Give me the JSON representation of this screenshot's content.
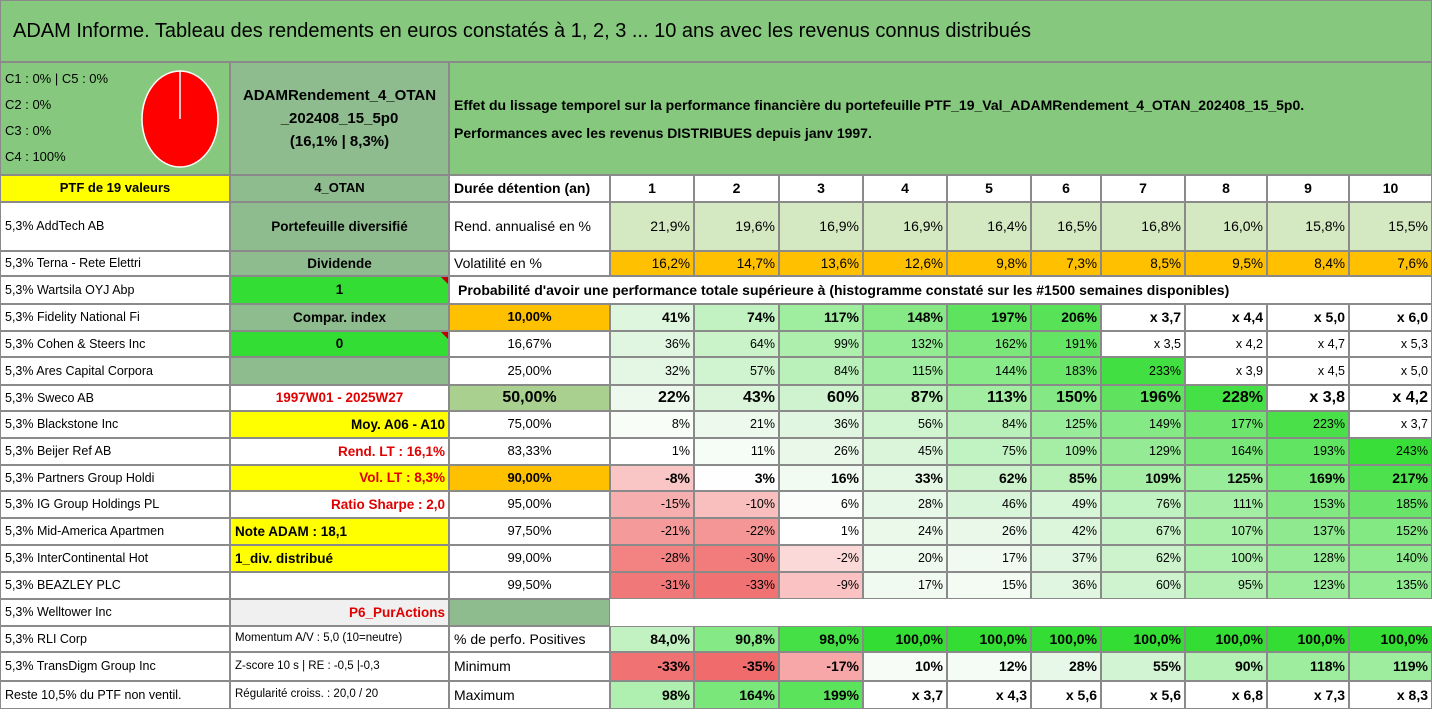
{
  "title": "ADAM Informe. Tableau des rendements en euros constatés à 1, 2, 3 ... 10 ans avec les revenus connus distribués",
  "colors": {
    "header_green": "#86c97e",
    "mid_green": "#8fbc8f",
    "yellow": "#ffff00",
    "orange": "#ffc000",
    "bright_green": "#33dd33",
    "pie_red": "#ff0000"
  },
  "allocation": {
    "lines": [
      "C1 : 0% | C5 : 0%",
      "C2 : 0%",
      "C3 : 0%",
      "C4 : 100%"
    ],
    "c4_share": 1.0
  },
  "portfolio": {
    "name_line1": "ADAMRendement_4_OTAN",
    "name_line2": "_202408_15_5p0",
    "name_line3": "(16,1% | 8,3%)",
    "description_line1": "Effet du lissage temporel sur la performance financière du portefeuille PTF_19_Val_ADAMRendement_4_OTAN_202408_15_5p0.",
    "description_line2": "Performances avec les revenus DISTRIBUES depuis janv 1997."
  },
  "labels": {
    "ptf_count": "PTF de 19 valeurs",
    "strategy": "4_OTAN",
    "duration": "Durée détention (an)",
    "years": [
      "1",
      "2",
      "3",
      "4",
      "5",
      "6",
      "7",
      "8",
      "9",
      "10"
    ],
    "probability_note": "Probabilité d'avoir une performance totale supérieure à (histogramme constaté sur les #1500 semaines disponibles)"
  },
  "holdings": [
    "5,3% AddTech AB",
    "5,3% Terna - Rete Elettri",
    "5,3% Wartsila OYJ Abp",
    "5,3% Fidelity National Fi",
    "5,3% Cohen & Steers Inc",
    "5,3% Ares Capital Corpora",
    "5,3% Sweco AB",
    "5,3% Blackstone Inc",
    "5,3% Beijer Ref AB",
    "5,3% Partners Group Holdi",
    "5,3% IG Group Holdings PL",
    "5,3% Mid-America Apartmen",
    "5,3% InterContinental Hot",
    "5,3% BEAZLEY PLC",
    "5,3% Welltower Inc",
    "5,3% RLI Corp",
    "5,3% TransDigm Group Inc",
    "Reste 10,5% du PTF non ventil."
  ],
  "info": [
    "Portefeuille diversifié",
    "Dividende",
    "1",
    "Compar. index",
    "0",
    "",
    "1997W01 - 2025W27",
    "Moy. A06 - A10",
    "Rend. LT : 16,1%",
    "Vol. LT : 8,3%",
    "Ratio Sharpe : 2,0",
    "Note ADAM : 18,1",
    "1_div. distribué",
    "",
    "P6_PurActions",
    "Momentum A/V : 5,0 (10=neutre)",
    "Z-score 10 s | RE : -0,5 |-0,3",
    "Régularité croiss. : 20,0 / 20"
  ],
  "returns": {
    "label": "Rend. annualisé en %",
    "values": [
      "21,9%",
      "19,6%",
      "16,9%",
      "16,9%",
      "16,4%",
      "16,5%",
      "16,8%",
      "16,0%",
      "15,8%",
      "15,5%"
    ]
  },
  "volatility": {
    "label": "Volatilité en %",
    "values": [
      "16,2%",
      "14,7%",
      "13,6%",
      "12,6%",
      "9,8%",
      "7,3%",
      "8,5%",
      "9,5%",
      "8,4%",
      "7,6%"
    ]
  },
  "probabilities": [
    {
      "p": "10,00%",
      "values": [
        "41%",
        "74%",
        "117%",
        "148%",
        "197%",
        "206%",
        "x 3,7",
        "x 4,4",
        "x 5,0",
        "x 6,0"
      ]
    },
    {
      "p": "16,67%",
      "values": [
        "36%",
        "64%",
        "99%",
        "132%",
        "162%",
        "191%",
        "x 3,5",
        "x 4,2",
        "x 4,7",
        "x 5,3"
      ]
    },
    {
      "p": "25,00%",
      "values": [
        "32%",
        "57%",
        "84%",
        "115%",
        "144%",
        "183%",
        "233%",
        "x 3,9",
        "x 4,5",
        "x 5,0"
      ]
    },
    {
      "p": "50,00%",
      "values": [
        "22%",
        "43%",
        "60%",
        "87%",
        "113%",
        "150%",
        "196%",
        "228%",
        "x 3,8",
        "x 4,2"
      ]
    },
    {
      "p": "75,00%",
      "values": [
        "8%",
        "21%",
        "36%",
        "56%",
        "84%",
        "125%",
        "149%",
        "177%",
        "223%",
        "x 3,7"
      ]
    },
    {
      "p": "83,33%",
      "values": [
        "1%",
        "11%",
        "26%",
        "45%",
        "75%",
        "109%",
        "129%",
        "164%",
        "193%",
        "243%"
      ]
    },
    {
      "p": "90,00%",
      "values": [
        "-8%",
        "3%",
        "16%",
        "33%",
        "62%",
        "85%",
        "109%",
        "125%",
        "169%",
        "217%"
      ]
    },
    {
      "p": "95,00%",
      "values": [
        "-15%",
        "-10%",
        "6%",
        "28%",
        "46%",
        "49%",
        "76%",
        "111%",
        "153%",
        "185%"
      ]
    },
    {
      "p": "97,50%",
      "values": [
        "-21%",
        "-22%",
        "1%",
        "24%",
        "26%",
        "42%",
        "67%",
        "107%",
        "137%",
        "152%"
      ]
    },
    {
      "p": "99,00%",
      "values": [
        "-28%",
        "-30%",
        "-2%",
        "20%",
        "17%",
        "37%",
        "62%",
        "100%",
        "128%",
        "140%"
      ]
    },
    {
      "p": "99,50%",
      "values": [
        "-31%",
        "-33%",
        "-9%",
        "17%",
        "15%",
        "36%",
        "60%",
        "95%",
        "123%",
        "135%"
      ]
    }
  ],
  "summary": [
    {
      "label": "% de perfo. Positives",
      "values": [
        "84,0%",
        "90,8%",
        "98,0%",
        "100,0%",
        "100,0%",
        "100,0%",
        "100,0%",
        "100,0%",
        "100,0%",
        "100,0%"
      ]
    },
    {
      "label": "Minimum",
      "values": [
        "-33%",
        "-35%",
        "-17%",
        "10%",
        "12%",
        "28%",
        "55%",
        "90%",
        "118%",
        "119%"
      ]
    },
    {
      "label": "Maximum",
      "values": [
        "98%",
        "164%",
        "199%",
        "x 3,7",
        "x 4,3",
        "x 5,6",
        "x 5,6",
        "x 6,8",
        "x 7,3",
        "x 8,3"
      ]
    }
  ]
}
